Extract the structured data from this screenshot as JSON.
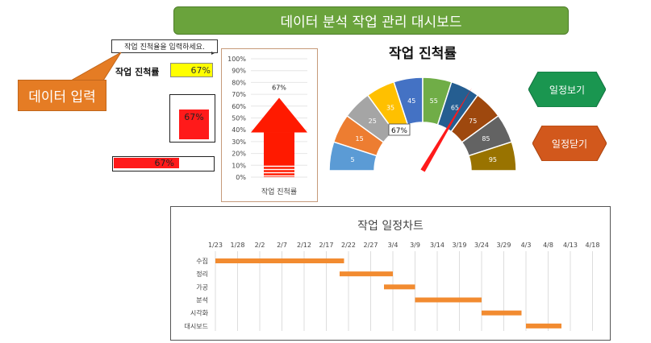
{
  "banner": {
    "title": "데이터 분석 작업 관리 대시보드"
  },
  "input_note": "작업 진척율을 입력하세요.",
  "callout": "데이터 입력",
  "progress": {
    "label": "작업 진척률",
    "value_text": "67%",
    "value": 0.67
  },
  "square_gauge": {
    "value_text": "67%",
    "value": 0.67
  },
  "bar_gauge": {
    "value_text": "67%",
    "value": 0.67
  },
  "buttons": {
    "open": "일정보기",
    "close": "일정닫기"
  },
  "colors": {
    "banner": "#6aa33c",
    "callout": "#e57c24",
    "gauge_fill": "#ff1a1a",
    "cell_fill": "#ffff00",
    "btn_open": "#1a9650",
    "btn_close": "#d2581c",
    "gantt_bar": "#f28b30"
  },
  "chart_data": [
    {
      "type": "bar",
      "name": "arrow-progress",
      "yticks": [
        "0%",
        "10%",
        "20%",
        "30%",
        "40%",
        "50%",
        "60%",
        "70%",
        "80%",
        "90%",
        "100%"
      ],
      "ylim": [
        0,
        1
      ],
      "value": 0.67,
      "data_label": "67%",
      "categories": [
        "작업 진척률"
      ]
    },
    {
      "type": "pie",
      "name": "half-donut-gauge",
      "title": "작업 진척률",
      "segments": [
        5,
        15,
        25,
        35,
        45,
        55,
        65,
        75,
        85,
        95
      ],
      "segment_colors": [
        "#5b9bd5",
        "#ed7d31",
        "#a5a5a5",
        "#ffc000",
        "#4472c4",
        "#70ad47",
        "#255e91",
        "#9e480e",
        "#636363",
        "#997300"
      ],
      "needle_value": 67,
      "needle_label": "67%"
    },
    {
      "type": "bar",
      "name": "gantt",
      "title": "작업 일정차트",
      "x_ticks": [
        "1/23",
        "1/28",
        "2/2",
        "2/7",
        "2/12",
        "2/17",
        "2/22",
        "2/27",
        "3/4",
        "3/9",
        "3/14",
        "3/19",
        "3/24",
        "3/29",
        "4/3",
        "4/8",
        "4/13",
        "4/18"
      ],
      "tasks": [
        {
          "name": "수집",
          "start": "1/23",
          "end": "2/21"
        },
        {
          "name": "정리",
          "start": "2/20",
          "end": "3/4"
        },
        {
          "name": "가공",
          "start": "3/2",
          "end": "3/9"
        },
        {
          "name": "분석",
          "start": "3/9",
          "end": "3/24"
        },
        {
          "name": "시각화",
          "start": "3/24",
          "end": "4/2"
        },
        {
          "name": "대시보드",
          "start": "4/3",
          "end": "4/11"
        }
      ]
    }
  ]
}
